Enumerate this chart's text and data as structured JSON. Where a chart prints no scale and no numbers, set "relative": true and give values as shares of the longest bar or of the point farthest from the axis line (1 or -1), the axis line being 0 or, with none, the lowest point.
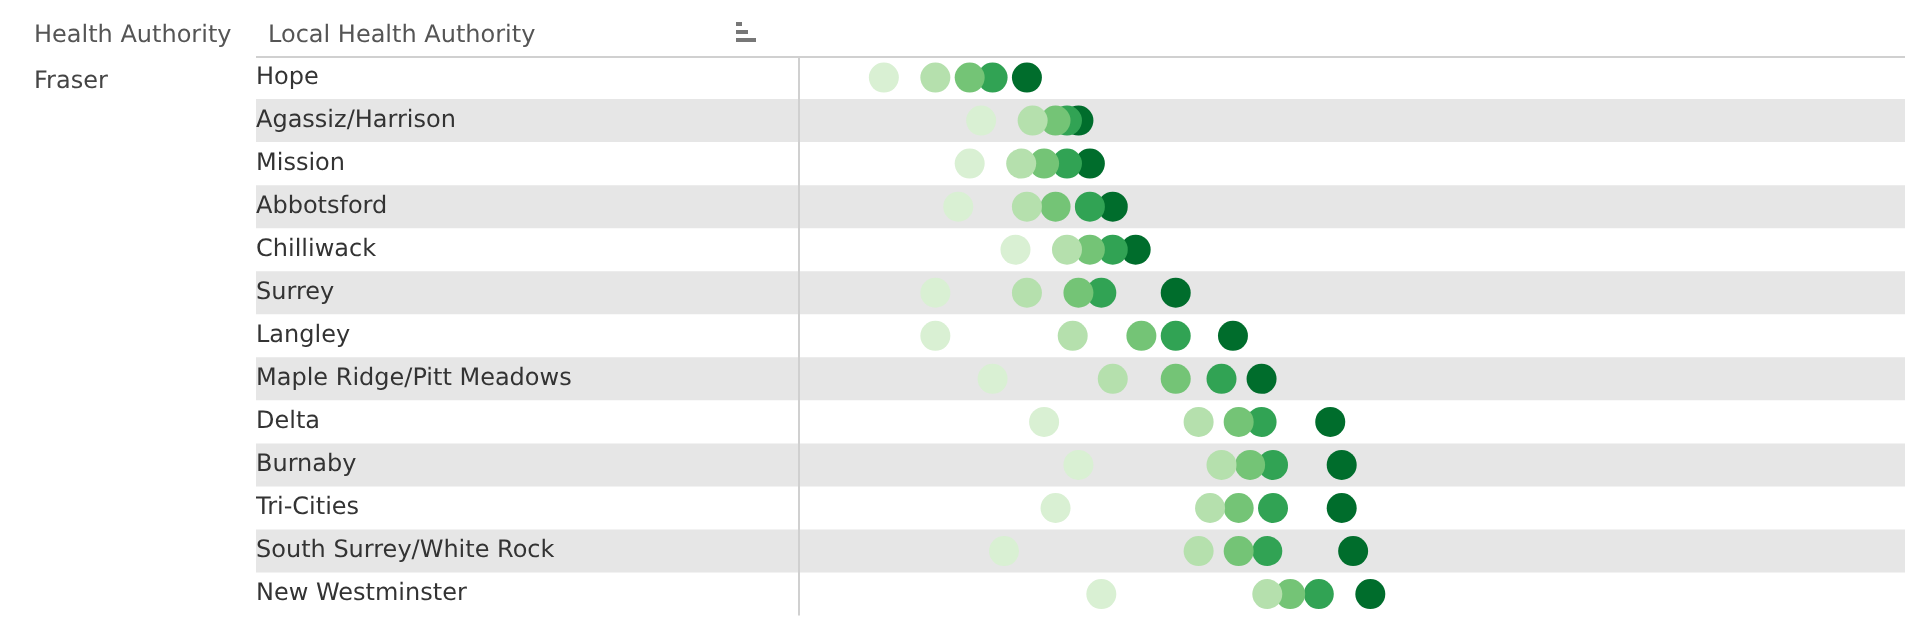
{
  "chart_data": {
    "type": "scatter",
    "orientation": "horizontal",
    "relative": true,
    "ylabel": "Local Health Authority",
    "annotations": [
      "Health Authority",
      "Fraser"
    ],
    "categories": [
      "Hope",
      "Agassiz/Harrison",
      "Mission",
      "Abbotsford",
      "Chilliwack",
      "Surrey",
      "Langley",
      "Maple Ridge/Pitt Meadows",
      "Delta",
      "Burnaby",
      "Tri-Cities",
      "South Surrey/White Rock",
      "New Westminster"
    ],
    "marker": "circle",
    "legend": false,
    "grid": false,
    "series": [
      {
        "color": "#d9f0d3",
        "values": [
          0.15,
          0.32,
          0.3,
          0.28,
          0.38,
          0.24,
          0.24,
          0.34,
          0.43,
          0.49,
          0.45,
          0.36,
          0.53
        ]
      },
      {
        "color": "#b5e0ad",
        "values": [
          0.24,
          0.41,
          0.39,
          0.4,
          0.47,
          0.4,
          0.48,
          0.55,
          0.7,
          0.74,
          0.72,
          0.7,
          0.82
        ]
      },
      {
        "color": "#74c476",
        "values": [
          0.3,
          0.45,
          0.43,
          0.45,
          0.51,
          0.49,
          0.6,
          0.66,
          0.77,
          0.79,
          0.77,
          0.77,
          0.86
        ]
      },
      {
        "color": "#31a354",
        "values": [
          0.34,
          0.47,
          0.47,
          0.51,
          0.55,
          0.53,
          0.66,
          0.74,
          0.81,
          0.83,
          0.83,
          0.82,
          0.91
        ]
      },
      {
        "color": "#006d2c",
        "values": [
          0.4,
          0.49,
          0.51,
          0.55,
          0.59,
          0.66,
          0.76,
          0.81,
          0.93,
          0.95,
          0.95,
          0.97,
          1
        ]
      }
    ]
  }
}
